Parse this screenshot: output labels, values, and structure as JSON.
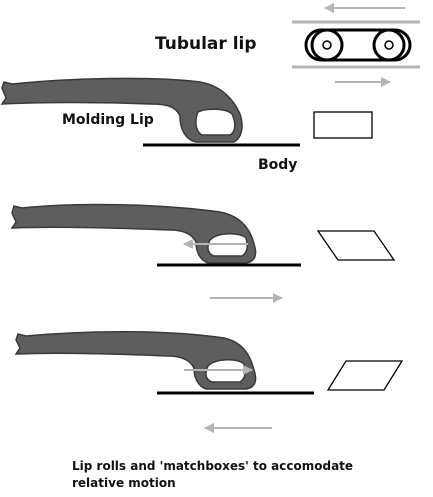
{
  "labels": {
    "tubular_lip": "Tubular lip",
    "molding_lip": "Molding Lip",
    "body": "Body",
    "caption_line1": "Lip rolls and 'matchboxes' to accomodate",
    "caption_line2": "relative motion"
  },
  "colors": {
    "lip_fill": "#5e5e5e",
    "lip_stroke": "#3a3a3a",
    "arrow_gray": "#b4b4b4",
    "line_black": "#000000"
  },
  "icons": {
    "arrow_left": "arrow-left-icon",
    "arrow_right": "arrow-right-icon",
    "roller": "roller-icon"
  }
}
